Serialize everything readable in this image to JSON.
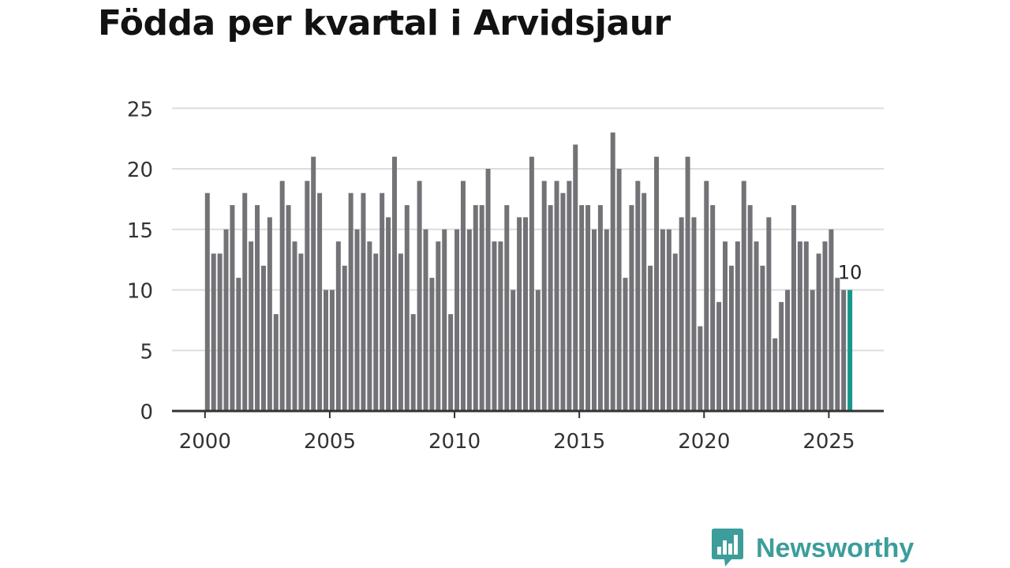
{
  "title": "Födda per kvartal i Arvidsjaur",
  "brand": {
    "name": "Newsworthy",
    "icon": "bar-chart-speech-bubble-icon",
    "color": "#3c9d9b"
  },
  "colors": {
    "bar": "#737277",
    "highlight": "#16958a",
    "grid": "#dddddd",
    "axis": "#333333"
  },
  "chart_data": {
    "type": "bar",
    "title": "Födda per kvartal i Arvidsjaur",
    "xlabel": "",
    "ylabel": "",
    "ylim": [
      0,
      25
    ],
    "yticks": [
      0,
      5,
      10,
      15,
      20,
      25
    ],
    "xticks": [
      "2000",
      "2005",
      "2010",
      "2015",
      "2020",
      "2025"
    ],
    "grid": true,
    "categories": [
      "2000 Q1",
      "2000 Q2",
      "2000 Q3",
      "2000 Q4",
      "2001 Q1",
      "2001 Q2",
      "2001 Q3",
      "2001 Q4",
      "2002 Q1",
      "2002 Q2",
      "2002 Q3",
      "2002 Q4",
      "2003 Q1",
      "2003 Q2",
      "2003 Q3",
      "2003 Q4",
      "2004 Q1",
      "2004 Q2",
      "2004 Q3",
      "2004 Q4",
      "2005 Q1",
      "2005 Q2",
      "2005 Q3",
      "2005 Q4",
      "2006 Q1",
      "2006 Q2",
      "2006 Q3",
      "2006 Q4",
      "2007 Q1",
      "2007 Q2",
      "2007 Q3",
      "2007 Q4",
      "2008 Q1",
      "2008 Q2",
      "2008 Q3",
      "2008 Q4",
      "2009 Q1",
      "2009 Q2",
      "2009 Q3",
      "2009 Q4",
      "2010 Q1",
      "2010 Q2",
      "2010 Q3",
      "2010 Q4",
      "2011 Q1",
      "2011 Q2",
      "2011 Q3",
      "2011 Q4",
      "2012 Q1",
      "2012 Q2",
      "2012 Q3",
      "2012 Q4",
      "2013 Q1",
      "2013 Q2",
      "2013 Q3",
      "2013 Q4",
      "2014 Q1",
      "2014 Q2",
      "2014 Q3",
      "2014 Q4",
      "2015 Q1",
      "2015 Q2",
      "2015 Q3",
      "2015 Q4",
      "2016 Q1",
      "2016 Q2",
      "2016 Q3",
      "2016 Q4",
      "2017 Q1",
      "2017 Q2",
      "2017 Q3",
      "2017 Q4",
      "2018 Q1",
      "2018 Q2",
      "2018 Q3",
      "2018 Q4",
      "2019 Q1",
      "2019 Q2",
      "2019 Q3",
      "2019 Q4",
      "2020 Q1",
      "2020 Q2",
      "2020 Q3",
      "2020 Q4",
      "2021 Q1",
      "2021 Q2",
      "2021 Q3",
      "2021 Q4",
      "2022 Q1",
      "2022 Q2",
      "2022 Q3",
      "2022 Q4",
      "2023 Q1",
      "2023 Q2",
      "2023 Q3",
      "2023 Q4",
      "2024 Q1",
      "2024 Q2",
      "2024 Q3",
      "2024 Q4",
      "2025 Q1",
      "2025 Q2",
      "2025 Q3",
      "2025 Q4"
    ],
    "values": [
      18,
      13,
      13,
      15,
      17,
      11,
      18,
      14,
      17,
      12,
      16,
      8,
      19,
      17,
      14,
      13,
      19,
      21,
      18,
      10,
      10,
      14,
      12,
      18,
      15,
      18,
      14,
      13,
      18,
      16,
      21,
      13,
      17,
      8,
      19,
      15,
      11,
      14,
      15,
      8,
      15,
      19,
      15,
      17,
      17,
      20,
      14,
      14,
      17,
      10,
      16,
      16,
      21,
      10,
      19,
      17,
      19,
      18,
      19,
      22,
      17,
      17,
      15,
      17,
      15,
      23,
      20,
      11,
      17,
      19,
      18,
      12,
      21,
      15,
      15,
      13,
      16,
      21,
      16,
      7,
      19,
      17,
      9,
      14,
      12,
      14,
      19,
      17,
      14,
      12,
      16,
      6,
      9,
      10,
      17,
      14,
      14,
      10,
      13,
      14,
      15,
      11,
      10,
      10
    ],
    "highlight_index": 103,
    "data_labels": [
      {
        "index": 103,
        "text": "10"
      }
    ]
  }
}
